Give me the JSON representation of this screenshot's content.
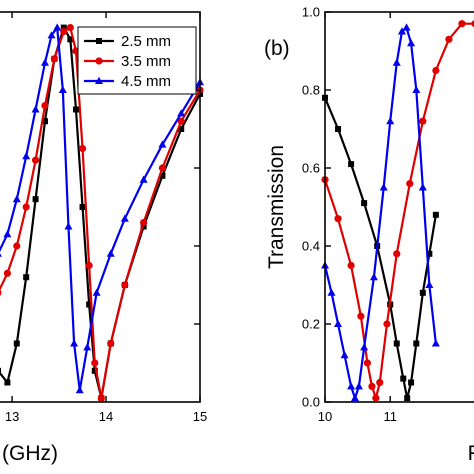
{
  "chart_data": [
    {
      "type": "line",
      "panel_label": "",
      "xlabel": "(GHz)",
      "ylabel": "",
      "xlim": [
        12.85,
        15.0
      ],
      "ylim": [
        0.0,
        1.0
      ],
      "xticks": [
        13,
        14,
        15
      ],
      "xtick_labels": [
        "13",
        "14",
        "15"
      ],
      "colors": {
        "2.5 mm": "#000000",
        "3.5 mm": "#e00000",
        "4.5 mm": "#0000ee"
      },
      "legend": {
        "position": "top-right",
        "entries": [
          "2.5 mm",
          "3.5 mm",
          "4.5 mm"
        ]
      },
      "series": [
        {
          "name": "2.5 mm",
          "marker": "square",
          "x": [
            12.85,
            12.95,
            13.05,
            13.15,
            13.25,
            13.35,
            13.45,
            13.55,
            13.62,
            13.68,
            13.75,
            13.82,
            13.88,
            13.95,
            14.05,
            14.2,
            14.4,
            14.6,
            14.8,
            15.0
          ],
          "y": [
            0.08,
            0.05,
            0.15,
            0.32,
            0.52,
            0.72,
            0.88,
            0.96,
            0.93,
            0.75,
            0.5,
            0.25,
            0.08,
            0.01,
            0.15,
            0.3,
            0.45,
            0.58,
            0.7,
            0.79
          ]
        },
        {
          "name": "3.5 mm",
          "marker": "circle",
          "x": [
            12.85,
            12.95,
            13.05,
            13.15,
            13.25,
            13.35,
            13.45,
            13.55,
            13.62,
            13.68,
            13.75,
            13.82,
            13.88,
            13.95,
            14.05,
            14.2,
            14.4,
            14.6,
            14.8,
            15.0
          ],
          "y": [
            0.28,
            0.33,
            0.4,
            0.5,
            0.62,
            0.76,
            0.88,
            0.95,
            0.96,
            0.9,
            0.65,
            0.35,
            0.1,
            0.01,
            0.15,
            0.3,
            0.46,
            0.6,
            0.72,
            0.8
          ]
        },
        {
          "name": "4.5 mm",
          "marker": "triangle",
          "x": [
            12.85,
            12.95,
            13.05,
            13.15,
            13.25,
            13.35,
            13.42,
            13.48,
            13.54,
            13.6,
            13.66,
            13.72,
            13.8,
            13.9,
            14.05,
            14.2,
            14.4,
            14.6,
            14.8,
            15.0
          ],
          "y": [
            0.38,
            0.43,
            0.52,
            0.63,
            0.75,
            0.87,
            0.94,
            0.96,
            0.8,
            0.45,
            0.15,
            0.03,
            0.14,
            0.28,
            0.38,
            0.47,
            0.57,
            0.66,
            0.74,
            0.82
          ]
        }
      ]
    },
    {
      "type": "line",
      "panel_label": "(b)",
      "xlabel": "F",
      "ylabel": "Transmission",
      "xlim": [
        10.0,
        12.3
      ],
      "ylim": [
        0.0,
        1.0
      ],
      "xticks": [
        10,
        11
      ],
      "xtick_labels": [
        "10",
        "11"
      ],
      "yticks": [
        0.0,
        0.2,
        0.4,
        0.6,
        0.8,
        1.0
      ],
      "ytick_labels": [
        "0.0",
        "0.2",
        "0.4",
        "0.6",
        "0.8",
        "1.0"
      ],
      "colors": {
        "2.5 mm": "#000000",
        "3.5 mm": "#e00000",
        "4.5 mm": "#0000ee"
      },
      "series": [
        {
          "name": "2.5 mm",
          "marker": "square",
          "x": [
            10.0,
            10.2,
            10.4,
            10.6,
            10.8,
            11.0,
            11.1,
            11.2,
            11.26,
            11.32,
            11.4,
            11.5,
            11.6,
            11.7
          ],
          "y": [
            0.78,
            0.7,
            0.61,
            0.51,
            0.4,
            0.25,
            0.15,
            0.06,
            0.01,
            0.05,
            0.15,
            0.28,
            0.38,
            0.48
          ]
        },
        {
          "name": "3.5 mm",
          "marker": "circle",
          "x": [
            10.0,
            10.2,
            10.4,
            10.55,
            10.65,
            10.72,
            10.78,
            10.84,
            10.95,
            11.1,
            11.3,
            11.5,
            11.7,
            11.9,
            12.1,
            12.3
          ],
          "y": [
            0.57,
            0.47,
            0.35,
            0.22,
            0.1,
            0.04,
            0.01,
            0.05,
            0.2,
            0.38,
            0.56,
            0.72,
            0.85,
            0.93,
            0.97,
            0.97
          ]
        },
        {
          "name": "4.5 mm",
          "marker": "triangle",
          "x": [
            10.0,
            10.1,
            10.2,
            10.3,
            10.4,
            10.46,
            10.52,
            10.6,
            10.75,
            10.9,
            11.0,
            11.1,
            11.18,
            11.25,
            11.32,
            11.4,
            11.5,
            11.6,
            11.7
          ],
          "y": [
            0.35,
            0.28,
            0.2,
            0.12,
            0.04,
            0.01,
            0.04,
            0.14,
            0.32,
            0.55,
            0.72,
            0.87,
            0.95,
            0.96,
            0.92,
            0.8,
            0.55,
            0.3,
            0.15
          ]
        }
      ]
    }
  ]
}
